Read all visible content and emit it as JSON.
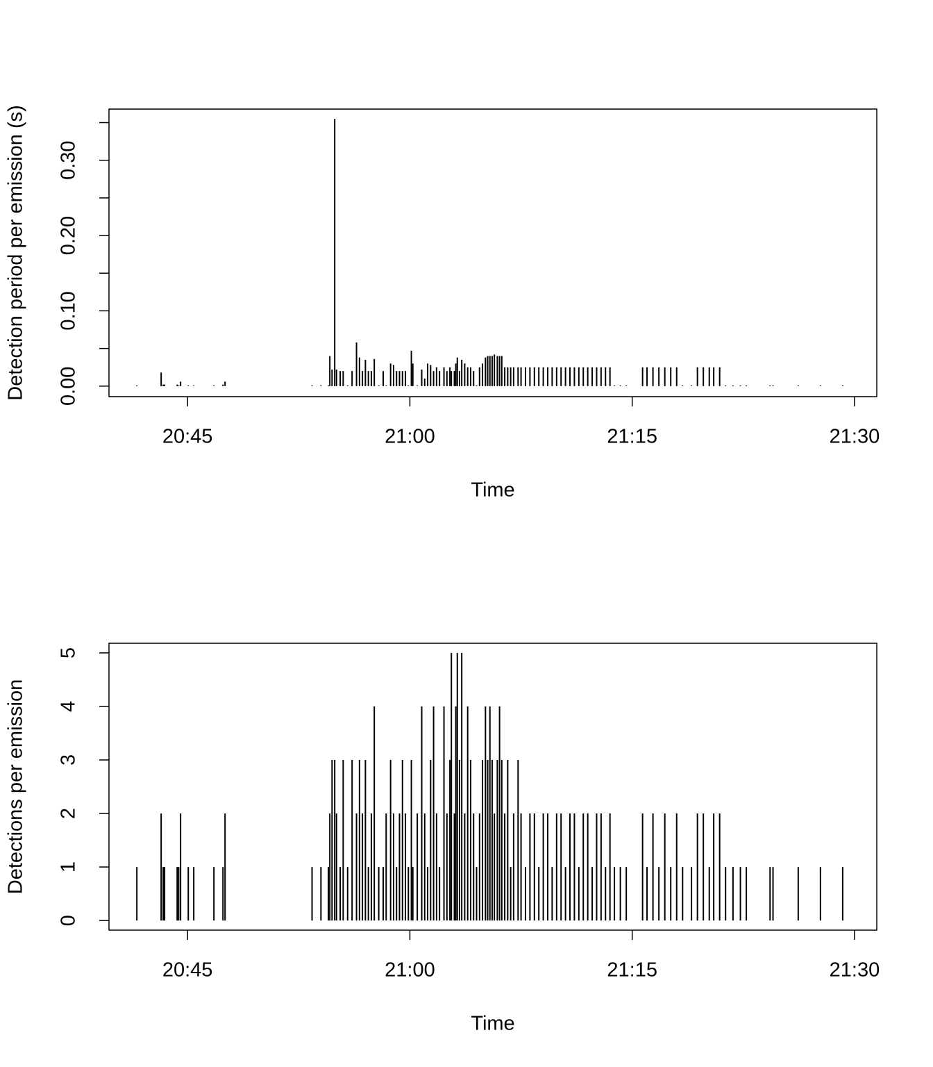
{
  "chart_data": [
    {
      "type": "spike",
      "ylabel": "Detection period per emission (s)",
      "xlabel": "Time",
      "color": "#000000",
      "xlim": [
        1239.7,
        1291.5
      ],
      "xticks": [
        {
          "value": 1245,
          "label": "20:45"
        },
        {
          "value": 1260,
          "label": "21:00"
        },
        {
          "value": 1275,
          "label": "21:15"
        },
        {
          "value": 1290,
          "label": "21:30"
        }
      ],
      "ylim": [
        -0.014,
        0.368
      ],
      "yticks": [
        {
          "value": 0,
          "label": "0.00"
        },
        {
          "value": 0.1,
          "label": "0.10"
        },
        {
          "value": 0.2,
          "label": "0.20"
        },
        {
          "value": 0.3,
          "label": "0.30"
        }
      ],
      "yminorticks": [
        0.05,
        0.15,
        0.25,
        0.35
      ],
      "x": [
        1241.58,
        1243.22,
        1243.36,
        1243.45,
        1244.3,
        1244.4,
        1244.53,
        1245.05,
        1245.42,
        1246.78,
        1247.39,
        1247.53,
        1253.4,
        1254.0,
        1254.5,
        1254.6,
        1254.75,
        1254.93,
        1255.05,
        1255.3,
        1255.5,
        1255.8,
        1256.1,
        1256.4,
        1256.6,
        1256.8,
        1257.0,
        1257.2,
        1257.4,
        1257.6,
        1257.9,
        1258.2,
        1258.4,
        1258.7,
        1258.9,
        1259.1,
        1259.3,
        1259.5,
        1259.7,
        1259.9,
        1260.1,
        1260.2,
        1260.5,
        1260.8,
        1261.0,
        1261.2,
        1261.4,
        1261.6,
        1261.8,
        1262.0,
        1262.3,
        1262.5,
        1262.7,
        1262.8,
        1263.0,
        1263.1,
        1263.2,
        1263.35,
        1263.5,
        1263.7,
        1263.9,
        1264.1,
        1264.3,
        1264.5,
        1264.7,
        1264.9,
        1265.1,
        1265.25,
        1265.4,
        1265.55,
        1265.7,
        1265.9,
        1266.05,
        1266.2,
        1266.4,
        1266.6,
        1266.8,
        1267.0,
        1267.3,
        1267.5,
        1267.8,
        1268.1,
        1268.4,
        1268.7,
        1269.0,
        1269.3,
        1269.6,
        1269.9,
        1270.2,
        1270.5,
        1270.8,
        1271.1,
        1271.4,
        1271.7,
        1272.0,
        1272.3,
        1272.6,
        1272.9,
        1273.2,
        1273.5,
        1273.8,
        1274.2,
        1274.6,
        1275.7,
        1276.0,
        1276.4,
        1276.8,
        1277.2,
        1277.6,
        1278.0,
        1278.4,
        1279.0,
        1279.4,
        1279.8,
        1280.2,
        1280.5,
        1280.9,
        1281.3,
        1281.8,
        1282.3,
        1282.7,
        1284.3,
        1284.5,
        1286.2,
        1287.7,
        1289.2
      ],
      "values": [
        0.001,
        0.018,
        0.002,
        0.002,
        0.002,
        0.001,
        0.006,
        0.001,
        0.001,
        0.001,
        0.002,
        0.006,
        0.001,
        0.001,
        0.001,
        0.04,
        0.022,
        0.355,
        0.022,
        0.02,
        0.02,
        0.001,
        0.02,
        0.058,
        0.038,
        0.02,
        0.035,
        0.02,
        0.02,
        0.036,
        0.001,
        0.02,
        0.001,
        0.03,
        0.028,
        0.02,
        0.02,
        0.02,
        0.02,
        0.001,
        0.047,
        0.03,
        0.001,
        0.022,
        0.01,
        0.03,
        0.028,
        0.02,
        0.025,
        0.02,
        0.025,
        0.02,
        0.025,
        0.02,
        0.02,
        0.03,
        0.038,
        0.02,
        0.035,
        0.03,
        0.025,
        0.025,
        0.02,
        0.001,
        0.025,
        0.03,
        0.038,
        0.04,
        0.04,
        0.04,
        0.042,
        0.04,
        0.04,
        0.04,
        0.025,
        0.025,
        0.025,
        0.025,
        0.025,
        0.025,
        0.025,
        0.025,
        0.025,
        0.025,
        0.025,
        0.025,
        0.025,
        0.025,
        0.025,
        0.025,
        0.025,
        0.025,
        0.025,
        0.025,
        0.025,
        0.025,
        0.025,
        0.025,
        0.025,
        0.025,
        0.001,
        0.001,
        0.001,
        0.025,
        0.025,
        0.025,
        0.025,
        0.025,
        0.025,
        0.025,
        0.001,
        0.001,
        0.025,
        0.025,
        0.025,
        0.025,
        0.025,
        0.001,
        0.001,
        0.001,
        0.001,
        0.001,
        0.001,
        0.001,
        0.001,
        0.001
      ]
    },
    {
      "type": "spike",
      "ylabel": "Detections per emission",
      "xlabel": "Time",
      "color": "#000000",
      "xlim": [
        1239.7,
        1291.5
      ],
      "xticks": [
        {
          "value": 1245,
          "label": "20:45"
        },
        {
          "value": 1260,
          "label": "21:00"
        },
        {
          "value": 1275,
          "label": "21:15"
        },
        {
          "value": 1290,
          "label": "21:30"
        }
      ],
      "ylim": [
        -0.18,
        5.18
      ],
      "yticks": [
        0,
        1,
        2,
        3,
        4,
        5
      ],
      "x": [
        1241.58,
        1243.22,
        1243.36,
        1243.45,
        1244.3,
        1244.4,
        1244.53,
        1245.05,
        1245.42,
        1246.78,
        1247.39,
        1247.53,
        1253.4,
        1254.0,
        1254.5,
        1254.6,
        1254.75,
        1254.93,
        1255.05,
        1255.3,
        1255.5,
        1255.8,
        1256.1,
        1256.4,
        1256.6,
        1256.8,
        1257.0,
        1257.2,
        1257.4,
        1257.6,
        1257.9,
        1258.2,
        1258.4,
        1258.7,
        1258.9,
        1259.1,
        1259.3,
        1259.5,
        1259.7,
        1259.9,
        1260.1,
        1260.2,
        1260.5,
        1260.8,
        1261.0,
        1261.2,
        1261.4,
        1261.6,
        1261.8,
        1262.0,
        1262.3,
        1262.5,
        1262.7,
        1262.8,
        1263.0,
        1263.1,
        1263.2,
        1263.35,
        1263.5,
        1263.7,
        1263.9,
        1264.1,
        1264.3,
        1264.5,
        1264.7,
        1264.9,
        1265.1,
        1265.25,
        1265.4,
        1265.55,
        1265.7,
        1265.9,
        1266.05,
        1266.2,
        1266.4,
        1266.6,
        1266.8,
        1267.0,
        1267.3,
        1267.5,
        1267.8,
        1268.1,
        1268.4,
        1268.7,
        1269.0,
        1269.3,
        1269.6,
        1269.9,
        1270.2,
        1270.5,
        1270.8,
        1271.1,
        1271.4,
        1271.7,
        1272.0,
        1272.3,
        1272.6,
        1272.9,
        1273.2,
        1273.5,
        1273.8,
        1274.2,
        1274.6,
        1275.7,
        1276.0,
        1276.4,
        1276.8,
        1277.2,
        1277.6,
        1278.0,
        1278.4,
        1279.0,
        1279.4,
        1279.8,
        1280.2,
        1280.5,
        1280.9,
        1281.3,
        1281.8,
        1282.3,
        1282.7,
        1284.3,
        1284.5,
        1286.2,
        1287.7,
        1289.2
      ],
      "values": [
        1,
        2,
        1,
        1,
        1,
        1,
        2,
        1,
        1,
        1,
        1,
        2,
        1,
        1,
        1,
        2,
        3,
        3,
        2,
        1,
        3,
        1,
        3,
        2,
        3,
        2,
        3,
        1,
        2,
        4,
        1,
        1,
        2,
        3,
        2,
        1,
        2,
        3,
        2,
        1,
        3,
        1,
        2,
        4,
        2,
        1,
        3,
        4,
        2,
        1,
        4,
        2,
        3,
        5,
        2,
        4,
        5,
        3,
        5,
        2,
        4,
        3,
        2,
        1,
        2,
        3,
        4,
        3,
        4,
        3,
        2,
        3,
        4,
        3,
        2,
        3,
        1,
        2,
        3,
        2,
        1,
        2,
        2,
        1,
        2,
        2,
        1,
        2,
        2,
        1,
        2,
        2,
        1,
        2,
        2,
        1,
        2,
        2,
        1,
        2,
        1,
        1,
        1,
        2,
        1,
        2,
        1,
        2,
        1,
        2,
        1,
        1,
        2,
        2,
        1,
        2,
        2,
        1,
        1,
        1,
        1,
        1,
        1,
        1,
        1,
        1
      ]
    }
  ]
}
